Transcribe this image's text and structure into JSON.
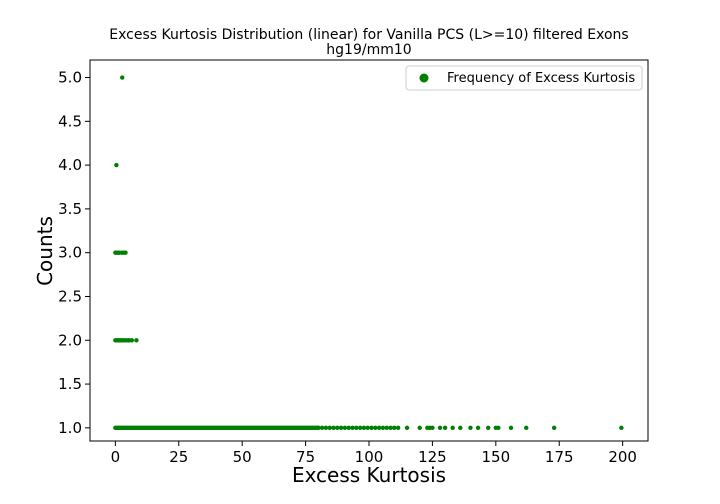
{
  "chart_data": {
    "type": "scatter",
    "title": "Excess Kurtosis Distribution (linear) for Vanilla PCS (L>=10) filtered Exons",
    "subtitle": "hg19/mm10",
    "xlabel": "Excess Kurtosis",
    "ylabel": "Counts",
    "xlim": [
      -10,
      210
    ],
    "ylim": [
      0.85,
      5.2
    ],
    "xticks": [
      0,
      25,
      50,
      75,
      100,
      125,
      150,
      175,
      200
    ],
    "yticks": [
      1.0,
      1.5,
      2.0,
      2.5,
      3.0,
      3.5,
      4.0,
      4.5,
      5.0
    ],
    "ytick_labels": [
      "1.0",
      "1.5",
      "2.0",
      "2.5",
      "3.0",
      "3.5",
      "4.0",
      "4.5",
      "5.0"
    ],
    "grid": false,
    "legend_position": "top-right",
    "marker_color": "#008000",
    "series": [
      {
        "name": "Frequency of Excess Kurtosis",
        "points": [
          {
            "x": 2.7,
            "y": 5
          },
          {
            "x": 0.4,
            "y": 4
          },
          {
            "x": 0.0,
            "y": 3
          },
          {
            "x": 0.5,
            "y": 3
          },
          {
            "x": 1.0,
            "y": 3
          },
          {
            "x": 1.5,
            "y": 3
          },
          {
            "x": 2.5,
            "y": 3
          },
          {
            "x": 3.3,
            "y": 3
          },
          {
            "x": 4.0,
            "y": 3
          },
          {
            "x": 0.0,
            "y": 2
          },
          {
            "x": 0.5,
            "y": 2
          },
          {
            "x": 1.0,
            "y": 2
          },
          {
            "x": 1.5,
            "y": 2
          },
          {
            "x": 2.0,
            "y": 2
          },
          {
            "x": 2.5,
            "y": 2
          },
          {
            "x": 3.0,
            "y": 2
          },
          {
            "x": 3.5,
            "y": 2
          },
          {
            "x": 4.2,
            "y": 2
          },
          {
            "x": 5.0,
            "y": 2
          },
          {
            "x": 5.5,
            "y": 2
          },
          {
            "x": 6.5,
            "y": 2
          },
          {
            "x": 8.3,
            "y": 2
          }
        ],
        "dense_runs": [
          {
            "y": 1,
            "x_start": 0,
            "x_end": 80,
            "step": 0.5
          },
          {
            "y": 1,
            "x_start": 80,
            "x_end": 112,
            "step": 1.5
          }
        ],
        "sparse_points": [
          {
            "x": 115,
            "y": 1
          },
          {
            "x": 120,
            "y": 1
          },
          {
            "x": 123,
            "y": 1
          },
          {
            "x": 124,
            "y": 1
          },
          {
            "x": 125,
            "y": 1
          },
          {
            "x": 128,
            "y": 1
          },
          {
            "x": 130,
            "y": 1
          },
          {
            "x": 133,
            "y": 1
          },
          {
            "x": 136,
            "y": 1
          },
          {
            "x": 140,
            "y": 1
          },
          {
            "x": 143,
            "y": 1
          },
          {
            "x": 147,
            "y": 1
          },
          {
            "x": 150,
            "y": 1
          },
          {
            "x": 151,
            "y": 1
          },
          {
            "x": 156,
            "y": 1
          },
          {
            "x": 162,
            "y": 1
          },
          {
            "x": 173,
            "y": 1
          },
          {
            "x": 199.5,
            "y": 1
          }
        ]
      }
    ]
  }
}
